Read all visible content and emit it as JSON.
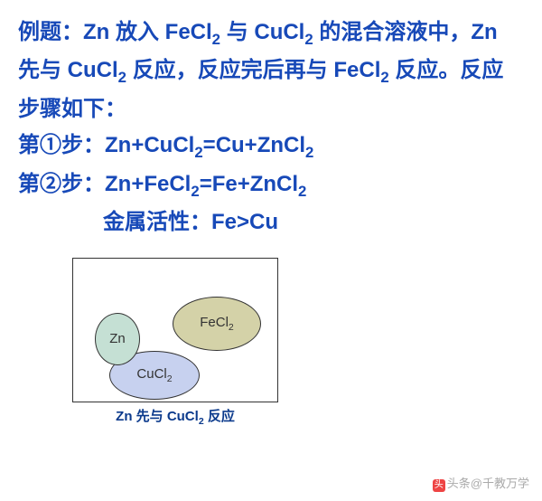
{
  "text": {
    "intro": "例题：Zn 放入 ",
    "fecl2": "FeCl",
    "and": "与 ",
    "cucl2": "CuCl",
    "intro2": "的混合溶液中，Zn 先与 ",
    "react1": "反应，反应完后再与 ",
    "react2": "反应。反应步骤如下：",
    "step1_label": "第①步：",
    "step1_eq_a": "Zn+CuCl",
    "step1_eq_b": "=Cu+ZnCl",
    "step2_label": "第②步：",
    "step2_eq_a": "Zn+FeCl",
    "step2_eq_b": "=Fe+ZnCl",
    "activity": "金属活性：Fe>Cu",
    "sub2": "2"
  },
  "diagram": {
    "zn": "Zn",
    "fecl2": "FeCl",
    "cucl2": "CuCl",
    "caption_a": "Zn 先与 CuCl",
    "caption_b": "反应",
    "colors": {
      "zn": "#c5e0d4",
      "fecl2": "#d4d2a8",
      "cucl2": "#c7d1ef"
    }
  },
  "watermark": {
    "logo": "头",
    "text": "头条@千教万学"
  }
}
